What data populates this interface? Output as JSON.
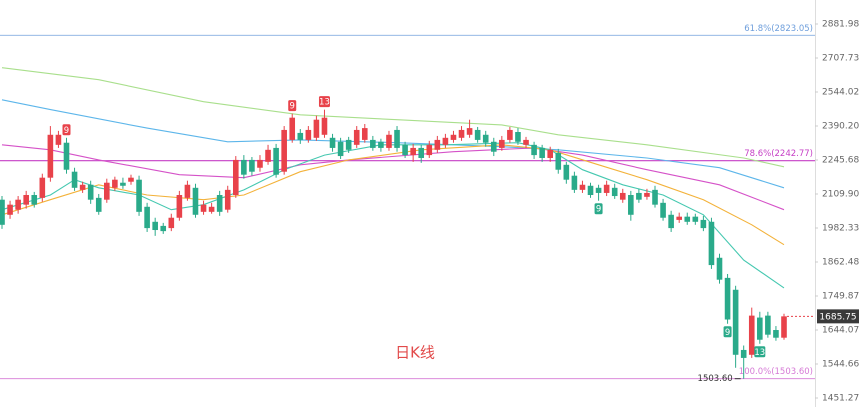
{
  "chart_data": {
    "type": "candlestick",
    "log_scale": true,
    "ylim": [
      1451.27,
      2881.98
    ],
    "yticks": [
      2881.98,
      2707.73,
      2544.02,
      {
        "value": 2390.2,
        "label": "2390.20"
      },
      2245.68,
      {
        "value": 2109.9,
        "label": "2109.90"
      },
      1982.33,
      1862.48,
      1749.87,
      1644.07,
      1544.66,
      1451.27
    ],
    "up_color": "#e8424a",
    "down_color": "#2aaa8a",
    "ohlc": [
      [
        2088,
        2102,
        1979,
        1994
      ],
      [
        2031,
        2084,
        2016,
        2069
      ],
      [
        2050,
        2102,
        2035,
        2088
      ],
      [
        2069,
        2122,
        2054,
        2106
      ],
      [
        2106,
        2118,
        2058,
        2069
      ],
      [
        2095,
        2190,
        2080,
        2174
      ],
      [
        2174,
        2390,
        2158,
        2352
      ],
      [
        2309,
        2369,
        2296,
        2352
      ],
      [
        2318,
        2339,
        2190,
        2206
      ],
      [
        2198,
        2214,
        2122,
        2134
      ],
      [
        2126,
        2158,
        2114,
        2146
      ],
      [
        2146,
        2162,
        2072,
        2088
      ],
      [
        2095,
        2110,
        2031,
        2042
      ],
      [
        2088,
        2170,
        2076,
        2154
      ],
      [
        2134,
        2178,
        2122,
        2166
      ],
      [
        2154,
        2174,
        2130,
        2142
      ],
      [
        2158,
        2186,
        2146,
        2174
      ],
      [
        2166,
        2182,
        2027,
        2042
      ],
      [
        2061,
        2076,
        1968,
        1982
      ],
      [
        2005,
        2020,
        1954,
        1975
      ],
      [
        1990,
        2001,
        1961,
        1971
      ],
      [
        1982,
        2035,
        1971,
        2020
      ],
      [
        2020,
        2122,
        2009,
        2106
      ],
      [
        2095,
        2162,
        2084,
        2146
      ],
      [
        2134,
        2150,
        2020,
        2031
      ],
      [
        2042,
        2084,
        2031,
        2069
      ],
      [
        2042,
        2076,
        2035,
        2061
      ],
      [
        2106,
        2122,
        2027,
        2042
      ],
      [
        2050,
        2142,
        2039,
        2126
      ],
      [
        2106,
        2262,
        2095,
        2246
      ],
      [
        2246,
        2266,
        2170,
        2186
      ],
      [
        2246,
        2258,
        2182,
        2198
      ],
      [
        2214,
        2266,
        2198,
        2246
      ],
      [
        2238,
        2309,
        2226,
        2288
      ],
      [
        2296,
        2313,
        2174,
        2186
      ],
      [
        2198,
        2390,
        2186,
        2373
      ],
      [
        2330,
        2445,
        2318,
        2427
      ],
      [
        2360,
        2377,
        2313,
        2330
      ],
      [
        2330,
        2390,
        2318,
        2373
      ],
      [
        2339,
        2436,
        2326,
        2418
      ],
      [
        2352,
        2463,
        2339,
        2427
      ],
      [
        2339,
        2356,
        2280,
        2296
      ],
      [
        2322,
        2339,
        2250,
        2262
      ],
      [
        2330,
        2343,
        2275,
        2288
      ],
      [
        2309,
        2390,
        2296,
        2373
      ],
      [
        2330,
        2399,
        2318,
        2381
      ],
      [
        2330,
        2347,
        2284,
        2296
      ],
      [
        2322,
        2335,
        2280,
        2296
      ],
      [
        2296,
        2369,
        2284,
        2352
      ],
      [
        2373,
        2390,
        2280,
        2296
      ],
      [
        2309,
        2322,
        2254,
        2266
      ],
      [
        2266,
        2313,
        2238,
        2296
      ],
      [
        2296,
        2309,
        2234,
        2254
      ],
      [
        2266,
        2326,
        2254,
        2309
      ],
      [
        2288,
        2347,
        2275,
        2330
      ],
      [
        2309,
        2356,
        2296,
        2339
      ],
      [
        2330,
        2369,
        2318,
        2352
      ],
      [
        2339,
        2390,
        2326,
        2373
      ],
      [
        2352,
        2418,
        2339,
        2381
      ],
      [
        2373,
        2386,
        2318,
        2330
      ],
      [
        2352,
        2369,
        2301,
        2318
      ],
      [
        2322,
        2339,
        2262,
        2280
      ],
      [
        2296,
        2347,
        2284,
        2330
      ],
      [
        2330,
        2386,
        2318,
        2373
      ],
      [
        2364,
        2381,
        2309,
        2322
      ],
      [
        2309,
        2343,
        2296,
        2330
      ],
      [
        2309,
        2322,
        2250,
        2266
      ],
      [
        2296,
        2309,
        2238,
        2254
      ],
      [
        2254,
        2301,
        2238,
        2288
      ],
      [
        2275,
        2292,
        2190,
        2206
      ],
      [
        2226,
        2238,
        2150,
        2166
      ],
      [
        2182,
        2198,
        2114,
        2126
      ],
      [
        2126,
        2162,
        2114,
        2146
      ],
      [
        2142,
        2154,
        2095,
        2106
      ],
      [
        2134,
        2146,
        2084,
        2114
      ],
      [
        2114,
        2162,
        2102,
        2146
      ],
      [
        2134,
        2150,
        2091,
        2102
      ],
      [
        2088,
        2130,
        2076,
        2114
      ],
      [
        2106,
        2122,
        2009,
        2031
      ],
      [
        2114,
        2130,
        2076,
        2088
      ],
      [
        2099,
        2130,
        2088,
        2114
      ],
      [
        2126,
        2142,
        2058,
        2069
      ],
      [
        2076,
        2091,
        2009,
        2020
      ],
      [
        2031,
        2046,
        1968,
        1982
      ],
      [
        2012,
        2039,
        2001,
        2024
      ],
      [
        2024,
        2039,
        1994,
        2005
      ],
      [
        2024,
        2035,
        1994,
        2005
      ],
      [
        2012,
        2027,
        1971,
        1982
      ],
      [
        2005,
        2020,
        1839,
        1852
      ],
      [
        1877,
        1891,
        1790,
        1803
      ],
      [
        1809,
        1822,
        1663,
        1676
      ],
      [
        1770,
        1783,
        1534,
        1571
      ],
      [
        1585,
        1598,
        1503.6,
        1562
      ],
      [
        1571,
        1713,
        1562,
        1688
      ],
      [
        1682,
        1700,
        1603,
        1615
      ],
      [
        1688,
        1700,
        1621,
        1630
      ],
      [
        1644,
        1656,
        1612,
        1621
      ],
      [
        1621,
        1694,
        1615,
        1685.75
      ]
    ],
    "moving_averages": [
      {
        "color": "#a9df8c",
        "x": [
          0,
          12,
          25,
          37,
          49,
          62,
          69,
          80,
          92,
          97
        ],
        "values": [
          2660,
          2602,
          2499,
          2440,
          2418,
          2395,
          2352,
          2309,
          2254,
          2218
        ]
      },
      {
        "color": "#5db6ea",
        "x": [
          0,
          6,
          18,
          28,
          37,
          49,
          62,
          69,
          80,
          89,
          97
        ],
        "values": [
          2508,
          2463,
          2381,
          2322,
          2330,
          2318,
          2301,
          2288,
          2254,
          2214,
          2134
        ]
      },
      {
        "color": "#d552c8",
        "x": [
          0,
          6,
          12,
          22,
          30,
          37,
          43,
          56,
          66,
          72,
          80,
          89,
          97
        ],
        "values": [
          2309,
          2288,
          2246,
          2186,
          2174,
          2226,
          2246,
          2280,
          2296,
          2266,
          2206,
          2146,
          2050
        ]
      },
      {
        "color": "#f3b23a",
        "x": [
          0,
          6,
          12,
          18,
          25,
          30,
          37,
          43,
          52,
          62,
          68,
          74,
          80,
          87,
          93,
          97
        ],
        "values": [
          2031,
          2088,
          2146,
          2106,
          2088,
          2106,
          2198,
          2246,
          2288,
          2309,
          2288,
          2226,
          2166,
          2088,
          1994,
          1922.5
        ]
      },
      {
        "color": "#45c8b0",
        "x": [
          0,
          6,
          9,
          12,
          17,
          21,
          25,
          30,
          35,
          40,
          47,
          55,
          64,
          68,
          72,
          77,
          82,
          87,
          92,
          97
        ],
        "values": [
          2050,
          2106,
          2166,
          2134,
          2106,
          2050,
          2069,
          2126,
          2206,
          2266,
          2309,
          2309,
          2318,
          2288,
          2206,
          2146,
          2106,
          2031,
          1869,
          1776
        ]
      }
    ],
    "fib_levels": [
      {
        "label": "61.8%(2823.05)",
        "value": 2823.05,
        "color": "#6f9fdc"
      },
      {
        "label": "78.6%(2242.77)",
        "value": 2242.77,
        "color": "#c63fc6"
      },
      {
        "label": "100.0%(1503.60)",
        "value": 1503.6,
        "color": "#d67ad6"
      }
    ],
    "signals": [
      {
        "index": 8,
        "text": "9",
        "side": "up"
      },
      {
        "index": 36,
        "text": "9",
        "side": "up"
      },
      {
        "index": 40,
        "text": "13",
        "side": "up"
      },
      {
        "index": 74,
        "text": "9",
        "side": "down"
      },
      {
        "index": 90,
        "text": "9",
        "side": "down"
      },
      {
        "index": 94,
        "text": "13",
        "side": "down"
      }
    ],
    "low_label": {
      "value": 1503.6,
      "label": "1503.60"
    },
    "last_price": {
      "value": 1685.75,
      "label": "1685.75"
    },
    "watermark": "日K线"
  }
}
